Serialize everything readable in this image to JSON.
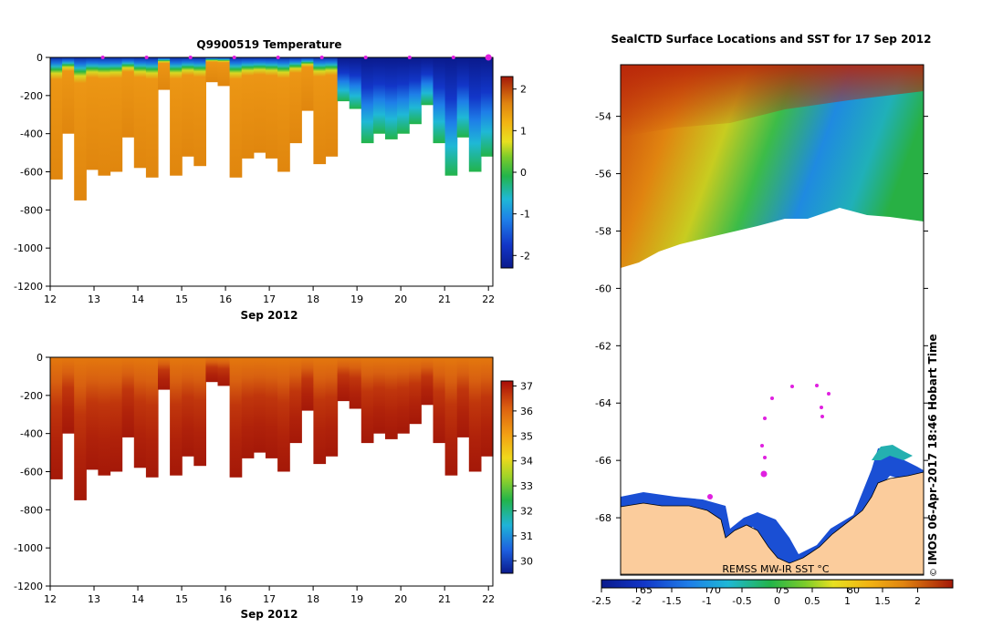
{
  "chart_data": [
    {
      "type": "heatmap",
      "title": "Q9900519  Temperature",
      "xlabel": "Sep 2012",
      "x_ticks": [
        "12",
        "13",
        "14",
        "15",
        "16",
        "17",
        "18",
        "19",
        "20",
        "21",
        "22"
      ],
      "y_ticks": [
        "0",
        "-200",
        "-400",
        "-600",
        "-800",
        "-1000",
        "-1200"
      ],
      "ylim": [
        -1200,
        0
      ],
      "xlim": [
        12,
        22.1
      ],
      "colorbar_ticks": [
        "2",
        "1",
        "0",
        "-1",
        "-2"
      ],
      "colorbar_range": [
        -2.3,
        2.3
      ],
      "profile_depths_m": [
        -640,
        -400,
        -750,
        -590,
        -620,
        -600,
        -420,
        -580,
        -630,
        -170,
        -620,
        -520,
        -570,
        -130,
        -150,
        -630,
        -530,
        -500,
        -530,
        -600,
        -450,
        -280,
        -560,
        -520,
        -230,
        -270,
        -450,
        -400,
        -430,
        -400,
        -350,
        -250,
        -450,
        -620,
        -420,
        -600,
        -520
      ],
      "surface_markers": [
        "13.2",
        "14.2",
        "15.2",
        "16.2",
        "17.2",
        "18.2",
        "19.2",
        "20.2",
        "21.2",
        "22.0"
      ]
    },
    {
      "type": "heatmap",
      "title": "",
      "xlabel": "Sep 2012",
      "x_ticks": [
        "12",
        "13",
        "14",
        "15",
        "16",
        "17",
        "18",
        "19",
        "20",
        "21",
        "22"
      ],
      "y_ticks": [
        "0",
        "-200",
        "-400",
        "-600",
        "-800",
        "-1000",
        "-1200"
      ],
      "ylim": [
        -1200,
        0
      ],
      "xlim": [
        12,
        22.1
      ],
      "colorbar_ticks": [
        "37",
        "36",
        "35",
        "34",
        "33",
        "32",
        "31",
        "30"
      ],
      "colorbar_range": [
        29.5,
        37.2
      ],
      "profile_depths_m": [
        -640,
        -400,
        -750,
        -590,
        -620,
        -600,
        -420,
        -580,
        -630,
        -170,
        -620,
        -520,
        -570,
        -130,
        -150,
        -630,
        -530,
        -500,
        -530,
        -600,
        -450,
        -280,
        -560,
        -520,
        -230,
        -270,
        -450,
        -400,
        -430,
        -400,
        -350,
        -250,
        -450,
        -620,
        -420,
        -600,
        -520
      ]
    },
    {
      "type": "heatmap",
      "title": "SealCTD Surface Locations and SST for 17 Sep 2012",
      "y_ticks": [
        "-54",
        "-56",
        "-58",
        "-60",
        "-62",
        "-64",
        "-66",
        "-68"
      ],
      "ylim": [
        -70,
        -52.2
      ],
      "x_tick_labels_inner": [
        "65",
        "70",
        "75",
        "80"
      ],
      "colorbar_label": "REMSS MW-IR SST °C",
      "colorbar_ticks": [
        "-2.5",
        "-2",
        "-1.5",
        "-1",
        "-0.5",
        "0",
        "0.5",
        "1",
        "1.5",
        "2"
      ],
      "colorbar_range": [
        -2.5,
        2.5
      ],
      "side_label": "IMOS 06-Apr-2017 18:46 Hobart Time",
      "copyright": "©"
    }
  ]
}
